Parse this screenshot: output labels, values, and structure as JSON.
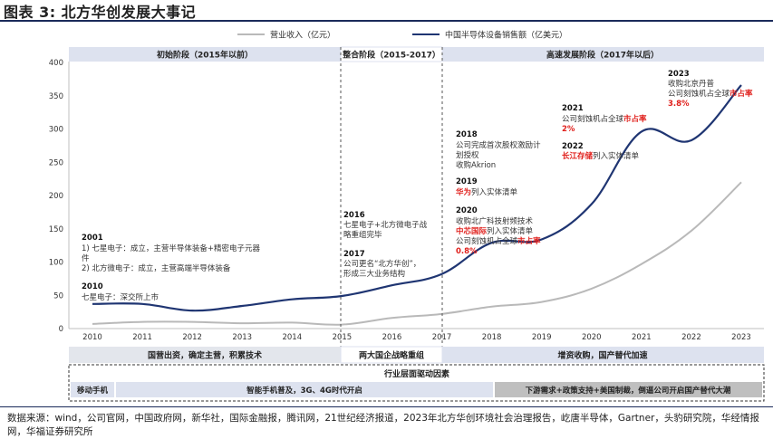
{
  "title": "图表 3:  北方华创发展大事记",
  "source_text": "数据来源：wind，公司官网，中国政府网，新华社，国际金融报，腾讯网，21世纪经济报道，2023年北方华创环境社会治理报告，屹唐半导体，Gartner，头豹研究院，华经情报网，华福证券研究所",
  "colors": {
    "navy": "#1f3572",
    "gray": "#b9b9b9",
    "header_light": "#dde2ef",
    "red": "#e0201c",
    "band_gray": "#bfbfbf"
  },
  "chart_data": {
    "type": "line",
    "x": [
      "2010",
      "2011",
      "2012",
      "2013",
      "2014",
      "2015",
      "2016",
      "2017",
      "2018",
      "2019",
      "2020",
      "2021",
      "2022",
      "2023"
    ],
    "ylim": [
      0,
      400
    ],
    "yticks": [
      "0",
      "50",
      "100",
      "150",
      "200",
      "250",
      "300",
      "350",
      "400"
    ],
    "grid": false,
    "legend_position": "top",
    "series": [
      {
        "name": "营业收入（亿元）",
        "color": "#b9b9b9",
        "values": [
          7,
          10,
          10,
          8,
          9,
          6,
          16,
          22,
          33,
          40,
          60,
          97,
          147,
          220
        ]
      },
      {
        "name": "中国半导体设备销售额（亿美元）",
        "color": "#1f3572",
        "values": [
          37,
          37,
          27,
          34,
          44,
          49,
          65,
          82,
          129,
          134,
          187,
          296,
          283,
          366
        ]
      }
    ],
    "phases": [
      "初始阶段（2015年以前）",
      "整合阶段（2015-2017）",
      "高速发展阶段（2017年以后）"
    ],
    "annotations": [
      {
        "year": "2001",
        "lines": [
          "1) 七星电子：成立，主营半导体装备+精密电子元器",
          "件",
          "2) 北方微电子：成立，主营高端半导体装备"
        ]
      },
      {
        "year": "2010",
        "lines": [
          "七星电子：深交所上市"
        ]
      },
      {
        "year": "2016",
        "lines": [
          "七星电子+北方微电子战",
          "略重组完毕"
        ]
      },
      {
        "year": "2017",
        "lines": [
          "公司更名“北方华创”，",
          "形成三大业务结构"
        ]
      },
      {
        "year": "2018",
        "lines": [
          "公司完成首次股权激励计",
          "划授权",
          "收购Akrion"
        ]
      },
      {
        "year": "2019",
        "lines": [
          "华为列入实体清单"
        ]
      },
      {
        "year": "2020",
        "lines": [
          "收购北广科技射频技术",
          "中芯国际列入实体清单",
          "公司刻蚀机占全球市占率",
          "0.8%"
        ]
      },
      {
        "year": "2021",
        "lines": [
          "公司刻蚀机占全球市占率",
          "2%"
        ]
      },
      {
        "year": "2022",
        "lines": [
          "长江存储列入实体清单"
        ]
      },
      {
        "year": "2023",
        "lines": [
          "收购北京丹普",
          "公司刻蚀机占全球市占率",
          "3.8%"
        ]
      }
    ],
    "bottom_rows": {
      "stage_row": [
        "国营出资，确定主营，积累技术",
        "两大国企战略重组",
        "增资收购，国产替代加速"
      ],
      "drivers_title": "行业层面驱动因素",
      "drivers_row": [
        "移动手机",
        "智能手机普及，3G、4G时代开启",
        "下游需求+政策支持+美国制裁，倒逼公司开启国产替代大潮"
      ]
    }
  }
}
